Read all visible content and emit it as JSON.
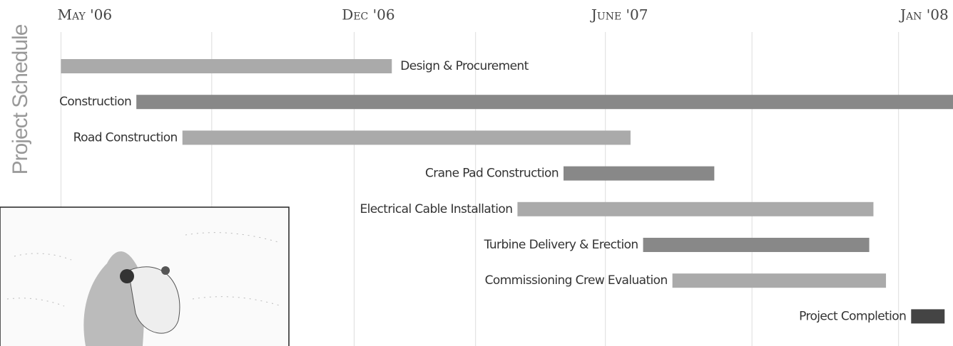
{
  "chart_data": {
    "type": "gantt",
    "title": "Project Schedule",
    "xlim": [
      -0.4,
      21.3
    ],
    "xticks": [
      {
        "value": 0,
        "label": "May '06"
      },
      {
        "value": 7,
        "label": "Dec '06"
      },
      {
        "value": 13,
        "label": "June '07"
      },
      {
        "value": 20,
        "label": "Jan '08"
      }
    ],
    "xgrid": [
      0,
      3.6,
      7,
      9.9,
      13,
      16.5,
      20
    ],
    "tasks": [
      {
        "name": "Design & Procurement",
        "start": 0,
        "end": 7.9,
        "color": "#aaaaaa"
      },
      {
        "name": "Construction",
        "start": 1.8,
        "end": 21.3,
        "color": "#888888"
      },
      {
        "name": "Road Construction",
        "start": 2.9,
        "end": 13.6,
        "color": "#aaaaaa"
      },
      {
        "name": "Crane Pad Construction",
        "start": 12.0,
        "end": 15.6,
        "color": "#888888"
      },
      {
        "name": "Electrical Cable Installation",
        "start": 10.9,
        "end": 19.4,
        "color": "#aaaaaa"
      },
      {
        "name": "Turbine Delivery & Erection",
        "start": 13.9,
        "end": 19.3,
        "color": "#888888"
      },
      {
        "name": "Commissioning Crew Evaluation",
        "start": 14.6,
        "end": 19.7,
        "color": "#aaaaaa"
      },
      {
        "name": "Project Completion",
        "start": 20.3,
        "end": 21.1,
        "color": "#444444"
      }
    ]
  }
}
